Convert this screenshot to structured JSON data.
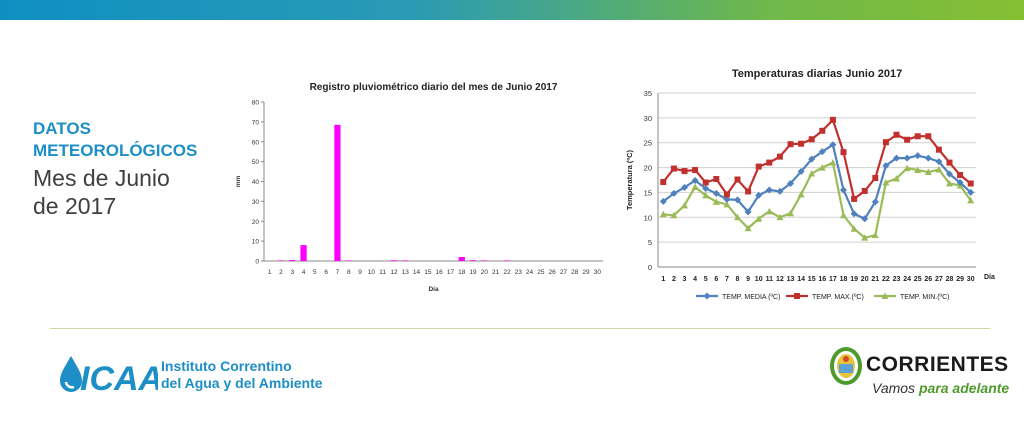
{
  "side": {
    "line1": "DATOS",
    "line2": "METEOROLÓGICOS",
    "line3": "Mes de Junio",
    "line4": "de 2017"
  },
  "footer": {
    "icaa_logo": "ICAA",
    "icaa_line1": "Instituto Correntino",
    "icaa_line2": "del Agua y del Ambiente",
    "corrientes_name": "CORRIENTES",
    "slogan_part1": "Vamos ",
    "slogan_part2": "para adelante",
    "brand_blue": "#1d8fc6",
    "brand_green": "#4e9a2c"
  },
  "chart_data": [
    {
      "type": "bar",
      "title": "Registro pluviométrico diario del mes de Junio 2017",
      "xlabel": "Día",
      "ylabel": "mm",
      "ylim": [
        0,
        80
      ],
      "yticks": [
        0,
        10,
        20,
        30,
        40,
        50,
        60,
        70,
        80
      ],
      "grid": false,
      "color": "#ff00ff",
      "categories": [
        "1",
        "2",
        "3",
        "4",
        "5",
        "6",
        "7",
        "8",
        "9",
        "10",
        "11",
        "12",
        "13",
        "14",
        "15",
        "16",
        "17",
        "18",
        "19",
        "20",
        "21",
        "22",
        "23",
        "24",
        "25",
        "26",
        "27",
        "28",
        "29",
        "30"
      ],
      "values": [
        0,
        0.3,
        0.5,
        8,
        0,
        0,
        68.5,
        0.3,
        0,
        0,
        0,
        0.4,
        0.3,
        0,
        0,
        0,
        0,
        2,
        0.4,
        0.3,
        0,
        0.3,
        0,
        0,
        0,
        0,
        0,
        0,
        0,
        0
      ]
    },
    {
      "type": "line",
      "title": "Temperaturas diarias Junio 2017",
      "xlabel": "Día",
      "ylabel": "Temperatura (ºC)",
      "ylim": [
        0,
        35
      ],
      "yticks": [
        0,
        5,
        10,
        15,
        20,
        25,
        30,
        35
      ],
      "grid": true,
      "legend": "bottom",
      "x": [
        "1",
        "2",
        "3",
        "4",
        "5",
        "6",
        "7",
        "8",
        "9",
        "10",
        "11",
        "12",
        "13",
        "14",
        "15",
        "16",
        "17",
        "18",
        "19",
        "20",
        "21",
        "22",
        "23",
        "24",
        "25",
        "26",
        "27",
        "28",
        "29",
        "30"
      ],
      "series": [
        {
          "name": "TEMP. MEDIA (ºC)",
          "color": "#4f81bd",
          "marker": "diamond",
          "values": [
            13.2,
            14.8,
            16,
            17.4,
            15.8,
            14.8,
            13.6,
            13.5,
            11.1,
            14.4,
            15.5,
            15.2,
            16.8,
            19.2,
            21.7,
            23.2,
            24.6,
            15.5,
            10.7,
            9.7,
            13.1,
            20.4,
            21.9,
            21.9,
            22.4,
            21.9,
            21.2,
            18.7,
            17,
            15
          ]
        },
        {
          "name": "TEMP. MAX.(ºC)",
          "color": "#c0302e",
          "marker": "square",
          "values": [
            17.1,
            19.8,
            19.3,
            19.5,
            17,
            17.7,
            14.6,
            17.6,
            15.2,
            20.2,
            21,
            22.2,
            24.7,
            24.8,
            25.7,
            27.4,
            29.6,
            23.1,
            13.7,
            15.3,
            17.9,
            25.1,
            26.6,
            25.6,
            26.3,
            26.3,
            23.6,
            21,
            18.5,
            16.8
          ]
        },
        {
          "name": "TEMP. MIN.(ºC)",
          "color": "#9bbb59",
          "marker": "triangle",
          "values": [
            10.6,
            10.4,
            12.4,
            16.1,
            14.4,
            13.1,
            12.6,
            10,
            7.8,
            9.7,
            11.2,
            10,
            10.8,
            14.6,
            18.8,
            20,
            21,
            10.4,
            7.7,
            5.9,
            6.4,
            17,
            17.8,
            19.9,
            19.5,
            19.1,
            19.6,
            16.8,
            16.4,
            13.4
          ]
        }
      ]
    }
  ]
}
